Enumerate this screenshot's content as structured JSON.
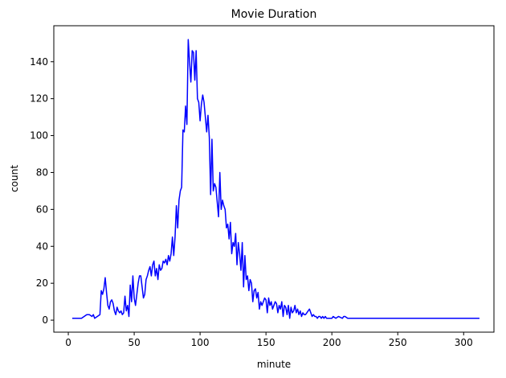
{
  "chart_data": {
    "type": "line",
    "title": "Movie Duration",
    "x_label": "minute",
    "y_label": "count",
    "x": [
      3,
      5,
      8,
      10,
      12,
      14,
      16,
      18,
      19,
      20,
      22,
      24,
      25,
      26,
      27,
      28,
      29,
      30,
      31,
      32,
      33,
      34,
      35,
      36,
      37,
      38,
      39,
      40,
      41,
      42,
      43,
      44,
      45,
      46,
      47,
      48,
      49,
      50,
      51,
      52,
      53,
      54,
      55,
      56,
      57,
      58,
      59,
      60,
      61,
      62,
      63,
      64,
      65,
      66,
      67,
      68,
      69,
      70,
      71,
      72,
      73,
      74,
      75,
      76,
      77,
      78,
      79,
      80,
      81,
      82,
      83,
      84,
      85,
      86,
      87,
      88,
      89,
      90,
      91,
      92,
      93,
      94,
      95,
      96,
      97,
      98,
      99,
      100,
      101,
      102,
      103,
      104,
      105,
      106,
      107,
      108,
      109,
      110,
      111,
      112,
      113,
      114,
      115,
      116,
      117,
      118,
      119,
      120,
      121,
      122,
      123,
      124,
      125,
      126,
      127,
      128,
      129,
      130,
      131,
      132,
      133,
      134,
      135,
      136,
      137,
      138,
      139,
      140,
      141,
      142,
      143,
      144,
      145,
      146,
      147,
      148,
      149,
      150,
      151,
      152,
      153,
      154,
      155,
      156,
      157,
      158,
      159,
      160,
      161,
      162,
      163,
      164,
      165,
      166,
      167,
      168,
      169,
      170,
      171,
      172,
      173,
      174,
      175,
      176,
      177,
      178,
      179,
      180,
      181,
      182,
      183,
      185,
      186,
      187,
      188,
      189,
      190,
      191,
      192,
      193,
      194,
      195,
      196,
      200,
      201,
      203,
      205,
      208,
      209,
      210,
      212,
      214,
      224,
      228,
      233,
      237,
      253,
      273,
      312
    ],
    "series": [
      {
        "name": "count",
        "color": "#0000ff",
        "values": [
          1,
          1,
          1,
          1,
          2,
          3,
          3,
          2,
          3,
          1,
          2,
          3,
          16,
          14,
          17,
          23,
          15,
          8,
          6,
          10,
          11,
          9,
          5,
          3,
          7,
          5,
          4,
          5,
          3,
          4,
          13,
          5,
          8,
          2,
          19,
          10,
          24,
          12,
          8,
          14,
          20,
          24,
          24,
          18,
          12,
          14,
          22,
          24,
          27,
          29,
          24,
          30,
          32,
          24,
          28,
          22,
          30,
          27,
          28,
          32,
          31,
          33,
          30,
          35,
          32,
          36,
          45,
          35,
          45,
          62,
          50,
          65,
          70,
          72,
          103,
          102,
          116,
          106,
          152,
          140,
          129,
          146,
          145,
          130,
          146,
          120,
          118,
          108,
          117,
          122,
          118,
          110,
          102,
          111,
          99,
          68,
          98,
          70,
          74,
          72,
          64,
          56,
          80,
          60,
          65,
          62,
          60,
          50,
          52,
          44,
          53,
          36,
          42,
          40,
          47,
          30,
          42,
          36,
          27,
          42,
          18,
          35,
          22,
          24,
          16,
          22,
          20,
          10,
          16,
          17,
          12,
          15,
          6,
          10,
          8,
          10,
          12,
          11,
          4,
          12,
          8,
          10,
          6,
          8,
          10,
          9,
          4,
          8,
          6,
          10,
          2,
          8,
          7,
          3,
          8,
          1,
          7,
          4,
          5,
          8,
          4,
          6,
          3,
          5,
          2,
          4,
          3,
          3,
          4,
          5,
          6,
          2,
          3,
          2,
          2,
          1,
          2,
          2,
          1,
          2,
          1,
          2,
          1,
          1,
          2,
          1,
          2,
          1,
          2,
          2,
          1,
          1,
          1,
          1,
          1,
          1,
          1,
          1,
          1
        ]
      }
    ],
    "xlim": [
      -11,
      323
    ],
    "ylim": [
      -6.5,
      159.5
    ],
    "xticks": [
      0,
      50,
      100,
      150,
      200,
      250,
      300
    ],
    "yticks": [
      0,
      20,
      40,
      60,
      80,
      100,
      120,
      140
    ]
  }
}
